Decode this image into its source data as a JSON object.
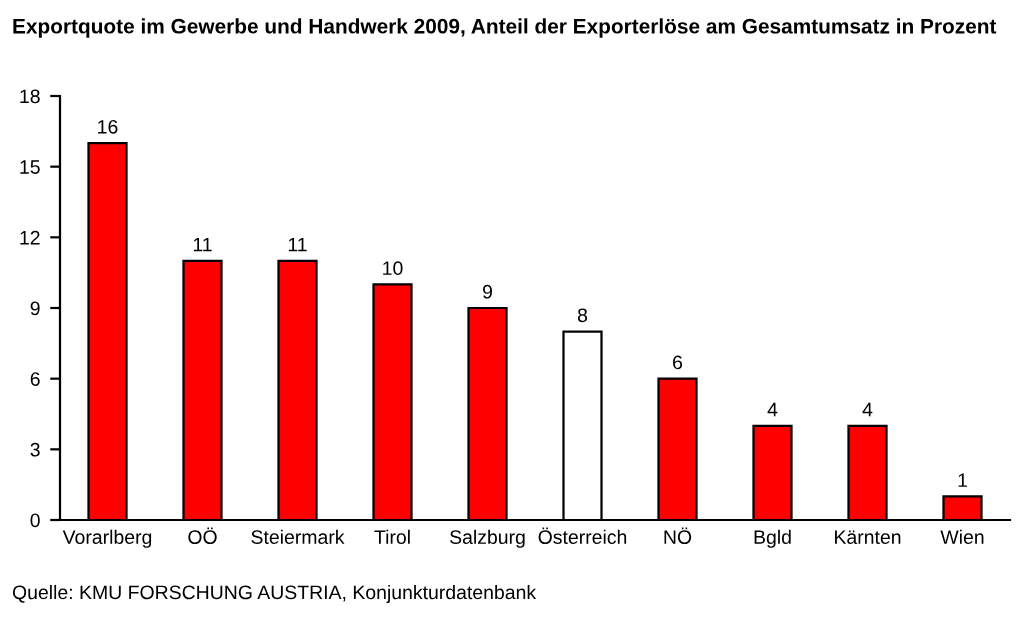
{
  "chart_data": {
    "type": "bar",
    "title": "Exportquote im Gewerbe und Handwerk 2009, Anteil der Exporterlöse am Gesamtumsatz in Prozent",
    "categories": [
      "Vorarlberg",
      "OÖ",
      "Steiermark",
      "Tirol",
      "Salzburg",
      "Österreich",
      "NÖ",
      "Bgld",
      "Kärnten",
      "Wien"
    ],
    "values": [
      16,
      11,
      11,
      10,
      9,
      8,
      6,
      4,
      4,
      1
    ],
    "colors": [
      "#ff0000",
      "#ff0000",
      "#ff0000",
      "#ff0000",
      "#ff0000",
      "#ffffff",
      "#ff0000",
      "#ff0000",
      "#ff0000",
      "#ff0000"
    ],
    "ylim": [
      0,
      18
    ],
    "yticks": [
      0,
      3,
      6,
      9,
      12,
      15,
      18
    ],
    "grid": false,
    "data_labels": true,
    "annotations": [
      "Quelle: KMU FORSCHUNG AUSTRIA, Konjunkturdatenbank"
    ]
  }
}
